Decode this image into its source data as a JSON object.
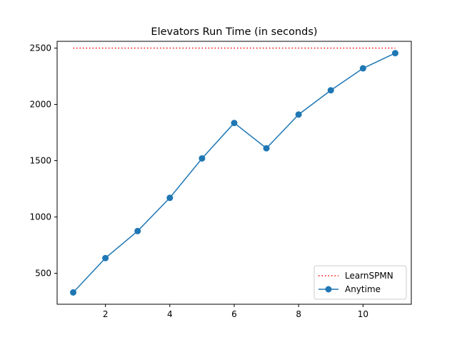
{
  "chart_data": {
    "type": "line",
    "title": "Elevators Run Time (in seconds)",
    "xlabel": "",
    "ylabel": "",
    "xlim": [
      0.5,
      11.5
    ],
    "ylim": [
      225,
      2560
    ],
    "xticks": [
      2,
      4,
      6,
      8,
      10
    ],
    "yticks": [
      500,
      1000,
      1500,
      2000,
      2500
    ],
    "grid": false,
    "legend_position": "lower-right",
    "series": [
      {
        "name": "LearnSPMN",
        "style": "dotted",
        "color": "#ff0000",
        "x": [
          1,
          11
        ],
        "y": [
          2500,
          2500
        ]
      },
      {
        "name": "Anytime",
        "style": "solid-with-markers",
        "color": "#1f77b4",
        "x": [
          1,
          2,
          3,
          4,
          5,
          6,
          7,
          8,
          9,
          10,
          11
        ],
        "y": [
          330,
          635,
          875,
          1170,
          1520,
          1835,
          1610,
          1910,
          2125,
          2320,
          2455
        ]
      }
    ]
  }
}
